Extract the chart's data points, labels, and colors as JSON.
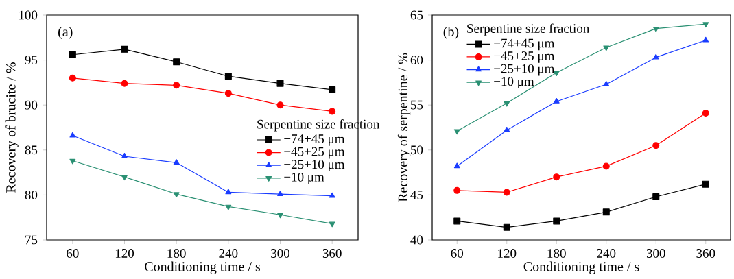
{
  "chart_data": [
    {
      "type": "line",
      "xlabel": "Conditioning time / s",
      "ylabel": "Recovery of brucite / %",
      "legend_title": "Serpentine size fraction",
      "annotations": [
        "(a)"
      ],
      "x": [
        60,
        120,
        180,
        240,
        300,
        360
      ],
      "xlim": [
        30,
        390
      ],
      "xticks": [
        60,
        120,
        180,
        240,
        300,
        360
      ],
      "ylim": [
        75,
        100
      ],
      "yticks": [
        75,
        80,
        85,
        90,
        95,
        100
      ],
      "legend": "right",
      "line_style": "solid",
      "series": [
        {
          "name": "−74+45 μm",
          "color": "#000000",
          "marker": "square",
          "values": [
            95.6,
            96.2,
            94.8,
            93.2,
            92.4,
            91.7
          ]
        },
        {
          "name": "−45+25 μm",
          "color": "#ff0000",
          "marker": "circle",
          "values": [
            93.0,
            92.4,
            92.2,
            91.3,
            90.0,
            89.3
          ]
        },
        {
          "name": "−25+10 μm",
          "color": "#1a3cff",
          "marker": "triangle",
          "values": [
            86.6,
            84.3,
            83.6,
            80.3,
            80.1,
            79.9
          ]
        },
        {
          "name": "−10 μm",
          "color": "#2a9073",
          "marker": "triangle-down",
          "values": [
            83.8,
            82.0,
            80.1,
            78.7,
            77.8,
            76.8
          ]
        }
      ]
    },
    {
      "type": "line",
      "xlabel": "Conditioning time / s",
      "ylabel": "Recovery of serpentine / %",
      "legend_title": "Serpentine size fraction",
      "annotations": [
        "(b)"
      ],
      "x": [
        60,
        120,
        180,
        240,
        300,
        360
      ],
      "xlim": [
        30,
        390
      ],
      "xticks": [
        60,
        120,
        180,
        240,
        300,
        360
      ],
      "ylim": [
        40,
        65
      ],
      "yticks": [
        40,
        45,
        50,
        55,
        60,
        65
      ],
      "legend": "top left",
      "line_style": "solid",
      "series": [
        {
          "name": "−74+45 μm",
          "color": "#000000",
          "marker": "square",
          "values": [
            42.1,
            41.4,
            42.1,
            43.1,
            44.8,
            46.2
          ]
        },
        {
          "name": "−45+25 μm",
          "color": "#ff0000",
          "marker": "circle",
          "values": [
            45.5,
            45.3,
            47.0,
            48.2,
            50.5,
            54.1
          ]
        },
        {
          "name": "−25+10 μm",
          "color": "#1a3cff",
          "marker": "triangle",
          "values": [
            48.2,
            52.2,
            55.4,
            57.3,
            60.3,
            62.2
          ]
        },
        {
          "name": "−10 μm",
          "color": "#2a9073",
          "marker": "triangle-down",
          "values": [
            52.1,
            55.2,
            58.6,
            61.4,
            63.5,
            64.0
          ]
        }
      ]
    }
  ]
}
